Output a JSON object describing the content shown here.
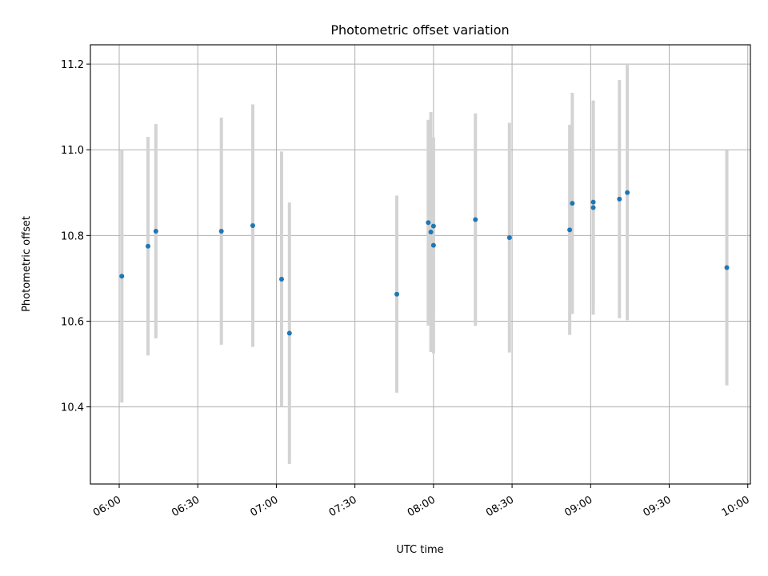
{
  "chart_data": {
    "type": "scatter",
    "title": "Photometric offset variation",
    "xlabel": "UTC time",
    "ylabel": "Photometric offset",
    "xlim": [
      "05:49",
      "10:01"
    ],
    "ylim": [
      10.22,
      11.245
    ],
    "grid": true,
    "x_ticks": [
      "06:00",
      "06:30",
      "07:00",
      "07:30",
      "08:00",
      "08:30",
      "09:00",
      "09:30",
      "10:00"
    ],
    "y_ticks": [
      "10.4",
      "10.6",
      "10.8",
      "11.0",
      "11.2"
    ],
    "colors": {
      "points": "#1f77b4",
      "error_bars": "#d3d3d3"
    },
    "points": [
      {
        "x": "06:01",
        "y": 10.705,
        "err": 0.295
      },
      {
        "x": "06:11",
        "y": 10.775,
        "err": 0.255
      },
      {
        "x": "06:14",
        "y": 10.81,
        "err": 0.25
      },
      {
        "x": "06:39",
        "y": 10.81,
        "err": 0.265
      },
      {
        "x": "06:51",
        "y": 10.823,
        "err": 0.283
      },
      {
        "x": "07:02",
        "y": 10.698,
        "err": 0.298
      },
      {
        "x": "07:05",
        "y": 10.572,
        "err": 0.305
      },
      {
        "x": "07:46",
        "y": 10.663,
        "err": 0.23
      },
      {
        "x": "07:58",
        "y": 10.83,
        "err": 0.24
      },
      {
        "x": "07:59",
        "y": 10.808,
        "err": 0.28
      },
      {
        "x": "08:00",
        "y": 10.822,
        "err": 0.205
      },
      {
        "x": "08:00",
        "y": 10.777,
        "err": 0.252
      },
      {
        "x": "08:16",
        "y": 10.837,
        "err": 0.248
      },
      {
        "x": "08:29",
        "y": 10.795,
        "err": 0.268
      },
      {
        "x": "08:52",
        "y": 10.813,
        "err": 0.245
      },
      {
        "x": "08:53",
        "y": 10.875,
        "err": 0.258
      },
      {
        "x": "09:01",
        "y": 10.878,
        "err": 0.235
      },
      {
        "x": "09:01",
        "y": 10.865,
        "err": 0.25
      },
      {
        "x": "09:11",
        "y": 10.885,
        "err": 0.278
      },
      {
        "x": "09:14",
        "y": 10.9,
        "err": 0.298
      },
      {
        "x": "09:52",
        "y": 10.725,
        "err": 0.275
      }
    ]
  }
}
